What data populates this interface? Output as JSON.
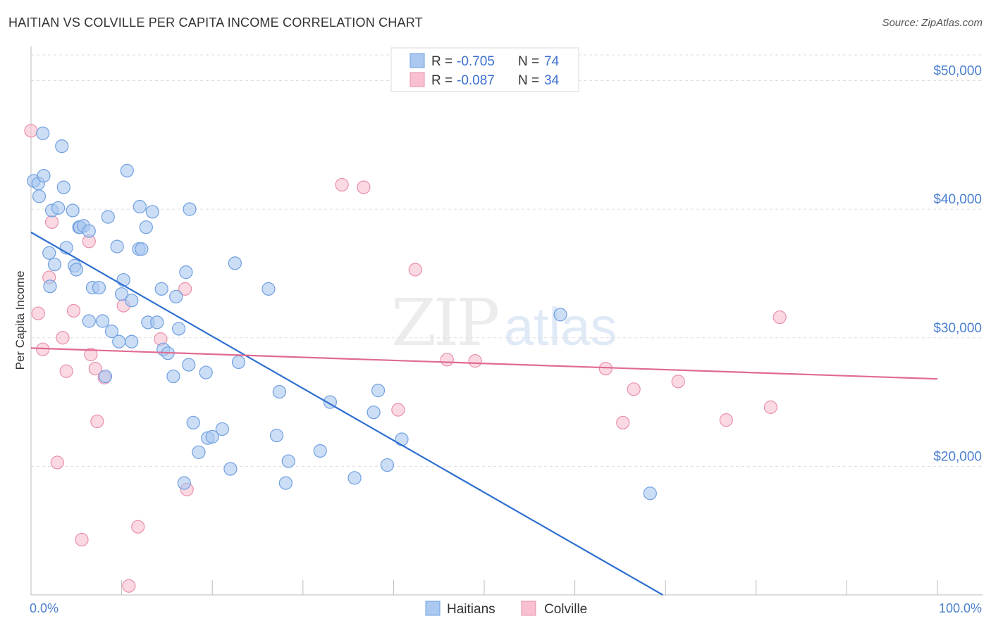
{
  "header": {
    "title": "HAITIAN VS COLVILLE PER CAPITA INCOME CORRELATION CHART",
    "source": "Source: ZipAtlas.com"
  },
  "legend": {
    "rows": [
      {
        "r_label": "R = ",
        "r_value": "-0.705",
        "n_label": "N = ",
        "n_value": "74"
      },
      {
        "r_label": "R = ",
        "r_value": "-0.087",
        "n_label": "N = ",
        "n_value": "34"
      }
    ]
  },
  "bottom_legend": [
    "Haitians",
    "Colville"
  ],
  "colors": {
    "haitian_fill": "#aac8f0",
    "haitian_stroke": "#6f9fe0",
    "haitian_line": "#2f6fd0",
    "colville_fill": "#f8c0d0",
    "colville_stroke": "#e890aa",
    "colville_line": "#e06a92",
    "grid": "#dddddd",
    "axis_text": "#4a7fd0"
  },
  "chart_data": {
    "type": "scatter",
    "title": "HAITIAN VS COLVILLE PER CAPITA INCOME CORRELATION CHART",
    "xlabel": "",
    "ylabel": "Per Capita Income",
    "xlim": [
      0,
      100
    ],
    "ylim": [
      10000,
      52000
    ],
    "x_tick_labels": [
      "0.0%",
      "100.0%"
    ],
    "y_ticks": [
      20000,
      30000,
      40000,
      50000
    ],
    "y_tick_labels": [
      "$20,000",
      "$30,000",
      "$40,000",
      "$50,000"
    ],
    "grid": true,
    "legend_position": "top-center",
    "watermark": "ZIPatlas",
    "series": [
      {
        "name": "Haitians",
        "r": -0.705,
        "n": 74,
        "trend": {
          "x": [
            0,
            69.7
          ],
          "y": [
            38200,
            10000
          ]
        },
        "points": [
          [
            0.3,
            42200
          ],
          [
            0.8,
            42000
          ],
          [
            0.9,
            41000
          ],
          [
            1.3,
            45900
          ],
          [
            1.4,
            42600
          ],
          [
            3.4,
            44900
          ],
          [
            3.6,
            41700
          ],
          [
            2.3,
            39900
          ],
          [
            3.0,
            40100
          ],
          [
            4.6,
            39900
          ],
          [
            5.3,
            38600
          ],
          [
            5.4,
            38600
          ],
          [
            5.8,
            38700
          ],
          [
            6.4,
            38300
          ],
          [
            8.5,
            39400
          ],
          [
            10.6,
            43000
          ],
          [
            12.0,
            40200
          ],
          [
            13.4,
            39800
          ],
          [
            17.5,
            40000
          ],
          [
            12.7,
            38600
          ],
          [
            2.0,
            36600
          ],
          [
            2.6,
            35700
          ],
          [
            3.9,
            37000
          ],
          [
            4.8,
            35600
          ],
          [
            5.0,
            35300
          ],
          [
            9.5,
            37100
          ],
          [
            11.9,
            36900
          ],
          [
            12.2,
            36900
          ],
          [
            17.1,
            35100
          ],
          [
            22.5,
            35800
          ],
          [
            2.1,
            34000
          ],
          [
            6.8,
            33900
          ],
          [
            7.5,
            33900
          ],
          [
            10.2,
            34500
          ],
          [
            10.0,
            33400
          ],
          [
            11.1,
            32900
          ],
          [
            14.4,
            33800
          ],
          [
            16.0,
            33200
          ],
          [
            26.2,
            33800
          ],
          [
            6.4,
            31300
          ],
          [
            7.9,
            31300
          ],
          [
            8.9,
            30500
          ],
          [
            12.9,
            31200
          ],
          [
            13.9,
            31200
          ],
          [
            16.3,
            30700
          ],
          [
            9.7,
            29700
          ],
          [
            11.1,
            29700
          ],
          [
            14.6,
            29100
          ],
          [
            15.1,
            28800
          ],
          [
            17.4,
            27900
          ],
          [
            19.3,
            27300
          ],
          [
            22.9,
            28100
          ],
          [
            8.2,
            27000
          ],
          [
            15.7,
            27000
          ],
          [
            27.4,
            25800
          ],
          [
            33.0,
            25000
          ],
          [
            37.8,
            24200
          ],
          [
            38.3,
            25900
          ],
          [
            17.9,
            23400
          ],
          [
            19.5,
            22200
          ],
          [
            20.0,
            22300
          ],
          [
            21.1,
            22900
          ],
          [
            27.1,
            22400
          ],
          [
            40.9,
            22100
          ],
          [
            18.5,
            21100
          ],
          [
            31.9,
            21200
          ],
          [
            22.0,
            19800
          ],
          [
            28.4,
            20400
          ],
          [
            39.3,
            20100
          ],
          [
            16.9,
            18700
          ],
          [
            28.1,
            18700
          ],
          [
            35.7,
            19100
          ],
          [
            58.4,
            31800
          ],
          [
            68.3,
            17900
          ]
        ]
      },
      {
        "name": "Colville",
        "r": -0.087,
        "n": 34,
        "trend": {
          "x": [
            0,
            100
          ],
          "y": [
            29200,
            26800
          ]
        },
        "points": [
          [
            0.0,
            46100
          ],
          [
            2.3,
            39000
          ],
          [
            6.4,
            37500
          ],
          [
            34.3,
            41900
          ],
          [
            36.7,
            41700
          ],
          [
            2.0,
            34700
          ],
          [
            17.0,
            33800
          ],
          [
            42.4,
            35300
          ],
          [
            0.8,
            31900
          ],
          [
            4.7,
            32100
          ],
          [
            10.2,
            32500
          ],
          [
            1.3,
            29100
          ],
          [
            3.5,
            30000
          ],
          [
            14.3,
            29900
          ],
          [
            6.6,
            28700
          ],
          [
            7.1,
            27600
          ],
          [
            3.9,
            27400
          ],
          [
            8.1,
            26900
          ],
          [
            45.9,
            28300
          ],
          [
            49.0,
            28200
          ],
          [
            63.4,
            27600
          ],
          [
            66.5,
            26000
          ],
          [
            71.4,
            26600
          ],
          [
            82.6,
            31600
          ],
          [
            40.5,
            24400
          ],
          [
            7.3,
            23500
          ],
          [
            81.6,
            24600
          ],
          [
            65.3,
            23400
          ],
          [
            76.7,
            23600
          ],
          [
            2.9,
            20300
          ],
          [
            17.2,
            18200
          ],
          [
            5.6,
            14300
          ],
          [
            11.8,
            15300
          ],
          [
            10.8,
            10700
          ]
        ]
      }
    ]
  }
}
